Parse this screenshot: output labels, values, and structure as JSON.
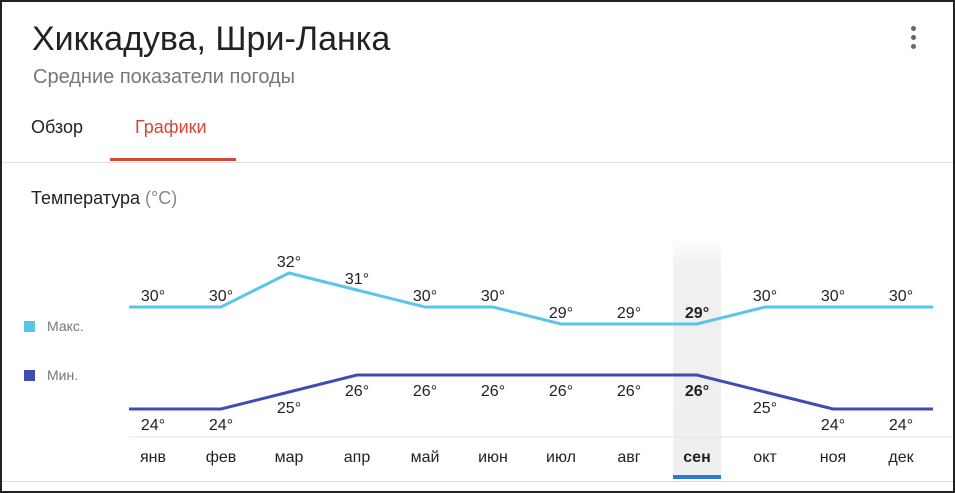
{
  "header": {
    "title": "Хиккадува, Шри-Ланка",
    "subtitle": "Средние показатели погоды"
  },
  "tabs": [
    {
      "label": "Обзор",
      "active": false
    },
    {
      "label": "Графики",
      "active": true
    }
  ],
  "section": {
    "title": "Температура",
    "unit": "(°C)"
  },
  "colors": {
    "max": "#5bc4eb",
    "min": "#3f4db0",
    "accent": "#d14836",
    "selected": "#2a7ad6"
  },
  "selected_month": "сен",
  "chart_data": {
    "type": "line",
    "title": "Температура (°C)",
    "categories": [
      "янв",
      "фев",
      "мар",
      "апр",
      "май",
      "июн",
      "июл",
      "авг",
      "сен",
      "окт",
      "ноя",
      "дек"
    ],
    "series": [
      {
        "name": "Макс.",
        "values": [
          30,
          30,
          32,
          31,
          30,
          30,
          29,
          29,
          29,
          30,
          30,
          30
        ]
      },
      {
        "name": "Мин.",
        "values": [
          24,
          24,
          25,
          26,
          26,
          26,
          26,
          26,
          26,
          25,
          24,
          24
        ]
      }
    ],
    "unit_suffix": "°"
  }
}
